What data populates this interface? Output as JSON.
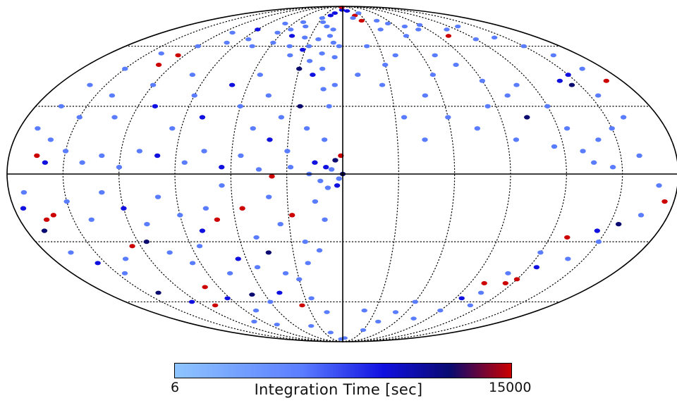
{
  "chart_data": {
    "type": "scatter",
    "projection": "mollweide",
    "coordinate_system": "galactic",
    "grid": true,
    "meridians_deg": [
      -150,
      -120,
      -90,
      -60,
      -30,
      0,
      30,
      60,
      90,
      120,
      150
    ],
    "parallels_deg": [
      -60,
      -30,
      0,
      30,
      60
    ],
    "colorbar": {
      "label": "Integration Time [sec]",
      "min": 6,
      "max": 15000,
      "min_label": "6",
      "max_label": "15000",
      "colors": [
        "#8ec5ff",
        "#5a7cff",
        "#1010e0",
        "#0a0a70",
        "#cc0000"
      ]
    },
    "points": [
      [
        -2,
        85,
        2
      ],
      [
        -20,
        80,
        2
      ],
      [
        -15,
        82,
        2
      ],
      [
        -5,
        88,
        4
      ],
      [
        -30,
        78,
        1
      ],
      [
        -25,
        75,
        1
      ],
      [
        -10,
        70,
        1
      ],
      [
        -18,
        72,
        1
      ],
      [
        -12,
        66,
        1
      ],
      [
        -8,
        62,
        1
      ],
      [
        -22,
        64,
        1
      ],
      [
        -28,
        60,
        1
      ],
      [
        -35,
        65,
        1
      ],
      [
        -32,
        58,
        2
      ],
      [
        -16,
        56,
        1
      ],
      [
        -6,
        54,
        1
      ],
      [
        -24,
        52,
        1
      ],
      [
        -40,
        55,
        1
      ],
      [
        -3,
        60,
        1
      ],
      [
        -14,
        48,
        1
      ],
      [
        -20,
        45,
        2
      ],
      [
        -30,
        48,
        3
      ],
      [
        -44,
        60,
        1
      ],
      [
        -48,
        66,
        2
      ],
      [
        -55,
        70,
        1
      ],
      [
        -60,
        62,
        1
      ],
      [
        -42,
        72,
        1
      ],
      [
        -50,
        75,
        1
      ],
      [
        -65,
        68,
        1
      ],
      [
        -70,
        74,
        1
      ],
      [
        -75,
        60,
        1
      ],
      [
        -85,
        64,
        1
      ],
      [
        -90,
        70,
        2
      ],
      [
        -100,
        62,
        1
      ],
      [
        -110,
        68,
        1
      ],
      [
        -120,
        60,
        1
      ],
      [
        -125,
        55,
        4
      ],
      [
        -130,
        50,
        4
      ],
      [
        -140,
        56,
        1
      ],
      [
        -150,
        48,
        1
      ],
      [
        -160,
        40,
        1
      ],
      [
        -165,
        30,
        1
      ],
      [
        -170,
        20,
        1
      ],
      [
        -160,
        15,
        1
      ],
      [
        -150,
        25,
        1
      ],
      [
        -140,
        35,
        1
      ],
      [
        -130,
        25,
        1
      ],
      [
        -120,
        40,
        1
      ],
      [
        -110,
        30,
        2
      ],
      [
        -100,
        45,
        1
      ],
      [
        -90,
        35,
        1
      ],
      [
        -95,
        20,
        1
      ],
      [
        -80,
        25,
        2
      ],
      [
        -70,
        40,
        2
      ],
      [
        -60,
        30,
        1
      ],
      [
        -55,
        45,
        1
      ],
      [
        -50,
        20,
        1
      ],
      [
        -45,
        35,
        1
      ],
      [
        -40,
        15,
        2
      ],
      [
        -35,
        25,
        1
      ],
      [
        -30,
        10,
        1
      ],
      [
        -25,
        30,
        3
      ],
      [
        -20,
        20,
        1
      ],
      [
        -15,
        5,
        2
      ],
      [
        -10,
        15,
        1
      ],
      [
        -8,
        30,
        1
      ],
      [
        -5,
        40,
        1
      ],
      [
        -12,
        38,
        1
      ],
      [
        -165,
        8,
        4
      ],
      [
        -160,
        5,
        2
      ],
      [
        -150,
        10,
        1
      ],
      [
        -140,
        5,
        1
      ],
      [
        -130,
        8,
        1
      ],
      [
        -120,
        3,
        1
      ],
      [
        -110,
        10,
        1
      ],
      [
        -100,
        8,
        2
      ],
      [
        -85,
        5,
        1
      ],
      [
        -75,
        10,
        1
      ],
      [
        -65,
        3,
        2
      ],
      [
        -55,
        8,
        1
      ],
      [
        -45,
        2,
        1
      ],
      [
        -38,
        -1,
        4
      ],
      [
        -28,
        3,
        1
      ],
      [
        -18,
        0,
        1
      ],
      [
        -4,
        6,
        3
      ],
      [
        -6,
        2,
        1
      ],
      [
        -2,
        -2,
        1
      ],
      [
        -3,
        -5,
        2
      ],
      [
        -8,
        -6,
        1
      ],
      [
        -9,
        3,
        2
      ],
      [
        -12,
        -3,
        1
      ],
      [
        0,
        0,
        3
      ],
      [
        -1,
        8,
        4
      ],
      [
        -172,
        -8,
        1
      ],
      [
        -175,
        -15,
        2
      ],
      [
        -170,
        -25,
        3
      ],
      [
        -165,
        -20,
        4
      ],
      [
        -160,
        -18,
        4
      ],
      [
        -150,
        -12,
        1
      ],
      [
        -140,
        -20,
        1
      ],
      [
        -130,
        -8,
        1
      ],
      [
        -120,
        -15,
        2
      ],
      [
        -110,
        -22,
        1
      ],
      [
        -100,
        -10,
        1
      ],
      [
        -90,
        -18,
        1
      ],
      [
        -80,
        -25,
        2
      ],
      [
        -75,
        -15,
        1
      ],
      [
        -70,
        -20,
        4
      ],
      [
        -65,
        -5,
        1
      ],
      [
        -55,
        -15,
        4
      ],
      [
        -50,
        -28,
        1
      ],
      [
        -40,
        -10,
        1
      ],
      [
        -35,
        -22,
        1
      ],
      [
        -28,
        -18,
        4
      ],
      [
        -22,
        -30,
        1
      ],
      [
        -15,
        -12,
        1
      ],
      [
        -10,
        -20,
        1
      ],
      [
        -165,
        -35,
        1
      ],
      [
        -155,
        -40,
        2
      ],
      [
        -145,
        -45,
        1
      ],
      [
        -135,
        -38,
        1
      ],
      [
        -125,
        -32,
        4
      ],
      [
        -115,
        -30,
        3
      ],
      [
        -105,
        -35,
        1
      ],
      [
        -95,
        -40,
        1
      ],
      [
        -85,
        -32,
        1
      ],
      [
        -75,
        -45,
        1
      ],
      [
        -65,
        -38,
        2
      ],
      [
        -55,
        -42,
        1
      ],
      [
        -45,
        -35,
        3
      ],
      [
        -38,
        -45,
        1
      ],
      [
        -30,
        -48,
        1
      ],
      [
        -22,
        -40,
        1
      ],
      [
        -14,
        -34,
        1
      ],
      [
        -140,
        -55,
        3
      ],
      [
        -125,
        -60,
        2
      ],
      [
        -110,
        -62,
        4
      ],
      [
        -100,
        -52,
        4
      ],
      [
        -92,
        -58,
        2
      ],
      [
        -80,
        -65,
        1
      ],
      [
        -70,
        -56,
        3
      ],
      [
        -60,
        -60,
        1
      ],
      [
        -48,
        -55,
        2
      ],
      [
        -35,
        -62,
        4
      ],
      [
        -25,
        -58,
        1
      ],
      [
        -15,
        -66,
        1
      ],
      [
        -100,
        -72,
        1
      ],
      [
        -80,
        -74,
        1
      ],
      [
        -40,
        -75,
        1
      ],
      [
        -20,
        -80,
        1
      ],
      [
        -5,
        -86,
        1
      ],
      [
        5,
        -85,
        1
      ],
      [
        10,
        84,
        2
      ],
      [
        20,
        80,
        4
      ],
      [
        25,
        76,
        4
      ],
      [
        15,
        78,
        1
      ],
      [
        30,
        82,
        1
      ],
      [
        40,
        70,
        1
      ],
      [
        45,
        76,
        1
      ],
      [
        55,
        74,
        1
      ],
      [
        60,
        66,
        1
      ],
      [
        70,
        72,
        1
      ],
      [
        80,
        70,
        1
      ],
      [
        90,
        73,
        1
      ],
      [
        100,
        66,
        4
      ],
      [
        110,
        70,
        1
      ],
      [
        120,
        64,
        1
      ],
      [
        130,
        72,
        1
      ],
      [
        140,
        65,
        1
      ],
      [
        150,
        60,
        1
      ],
      [
        160,
        55,
        1
      ],
      [
        165,
        48,
        1
      ],
      [
        170,
        42,
        4
      ],
      [
        150,
        45,
        2
      ],
      [
        145,
        40,
        3
      ],
      [
        140,
        42,
        2
      ],
      [
        155,
        35,
        1
      ],
      [
        160,
        25,
        1
      ],
      [
        150,
        20,
        1
      ],
      [
        140,
        15,
        1
      ],
      [
        130,
        10,
        1
      ],
      [
        120,
        30,
        1
      ],
      [
        110,
        40,
        1
      ],
      [
        100,
        35,
        1
      ],
      [
        90,
        42,
        1
      ],
      [
        80,
        50,
        1
      ],
      [
        70,
        55,
        1
      ],
      [
        60,
        45,
        1
      ],
      [
        50,
        35,
        1
      ],
      [
        40,
        55,
        1
      ],
      [
        30,
        50,
        1
      ],
      [
        20,
        60,
        1
      ],
      [
        10,
        45,
        1
      ],
      [
        25,
        40,
        1
      ],
      [
        35,
        25,
        1
      ],
      [
        45,
        15,
        1
      ],
      [
        60,
        25,
        1
      ],
      [
        75,
        20,
        1
      ],
      [
        85,
        30,
        1
      ],
      [
        95,
        15,
        1
      ],
      [
        105,
        25,
        3
      ],
      [
        115,
        12,
        1
      ],
      [
        125,
        20,
        1
      ],
      [
        135,
        5,
        1
      ],
      [
        145,
        3,
        1
      ],
      [
        160,
        8,
        1
      ],
      [
        170,
        -5,
        1
      ],
      [
        175,
        -12,
        4
      ],
      [
        165,
        -18,
        1
      ],
      [
        155,
        -22,
        3
      ],
      [
        150,
        -30,
        1
      ],
      [
        145,
        -25,
        2
      ],
      [
        140,
        -38,
        1
      ],
      [
        130,
        -28,
        4
      ],
      [
        120,
        -35,
        1
      ],
      [
        125,
        -42,
        2
      ],
      [
        110,
        -45,
        1
      ],
      [
        100,
        -50,
        4
      ],
      [
        105,
        -55,
        1
      ],
      [
        95,
        -58,
        2
      ],
      [
        115,
        -50,
        4
      ],
      [
        120,
        -48,
        4
      ],
      [
        110,
        -62,
        1
      ],
      [
        90,
        -65,
        1
      ],
      [
        75,
        -70,
        1
      ],
      [
        60,
        -60,
        1
      ],
      [
        50,
        -66,
        1
      ],
      [
        40,
        -72,
        1
      ],
      [
        30,
        -78,
        1
      ],
      [
        20,
        -65,
        1
      ]
    ]
  }
}
